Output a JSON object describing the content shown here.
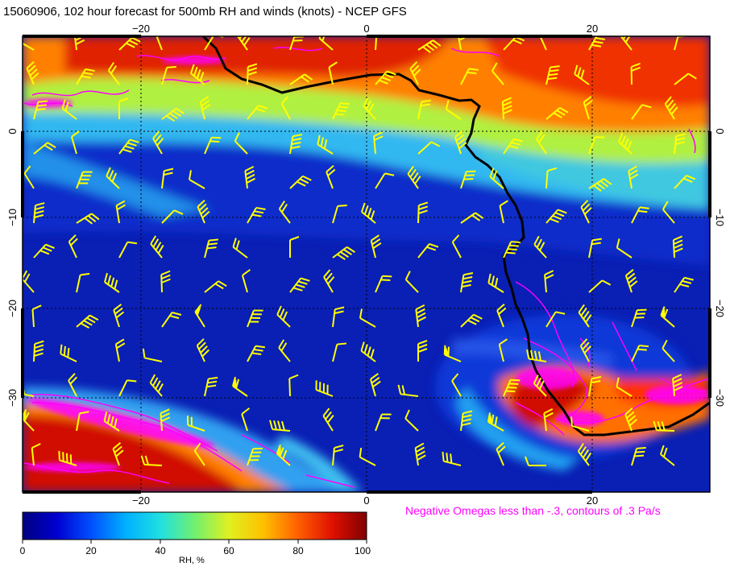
{
  "title": "15060906, 102 hour forecast for 500mb RH and winds (knots) - NCEP GFS",
  "omega_note": "Negative Omegas less than -.3, contours of .3 Pa/s",
  "colors": {
    "barb": "#ffff00",
    "omega": "#ff00ff",
    "coast": "#000000",
    "rh_ramp": [
      "#000080",
      "#0000d0",
      "#0050ff",
      "#00b0ff",
      "#20e0e0",
      "#70f070",
      "#e0f020",
      "#ffc000",
      "#ff6000",
      "#e01000",
      "#800000"
    ]
  },
  "map": {
    "lon_ticks": [
      "−20",
      "0",
      "20"
    ],
    "lat_ticks": [
      "0",
      "−10",
      "−20",
      "−30"
    ]
  },
  "colorbar": {
    "label": "RH, %",
    "ticks": [
      "0",
      "20",
      "40",
      "60",
      "80",
      "100"
    ],
    "range": [
      0,
      100
    ]
  },
  "icons": [
    "wind-barb-icon",
    "omega-contour",
    "coastline"
  ]
}
